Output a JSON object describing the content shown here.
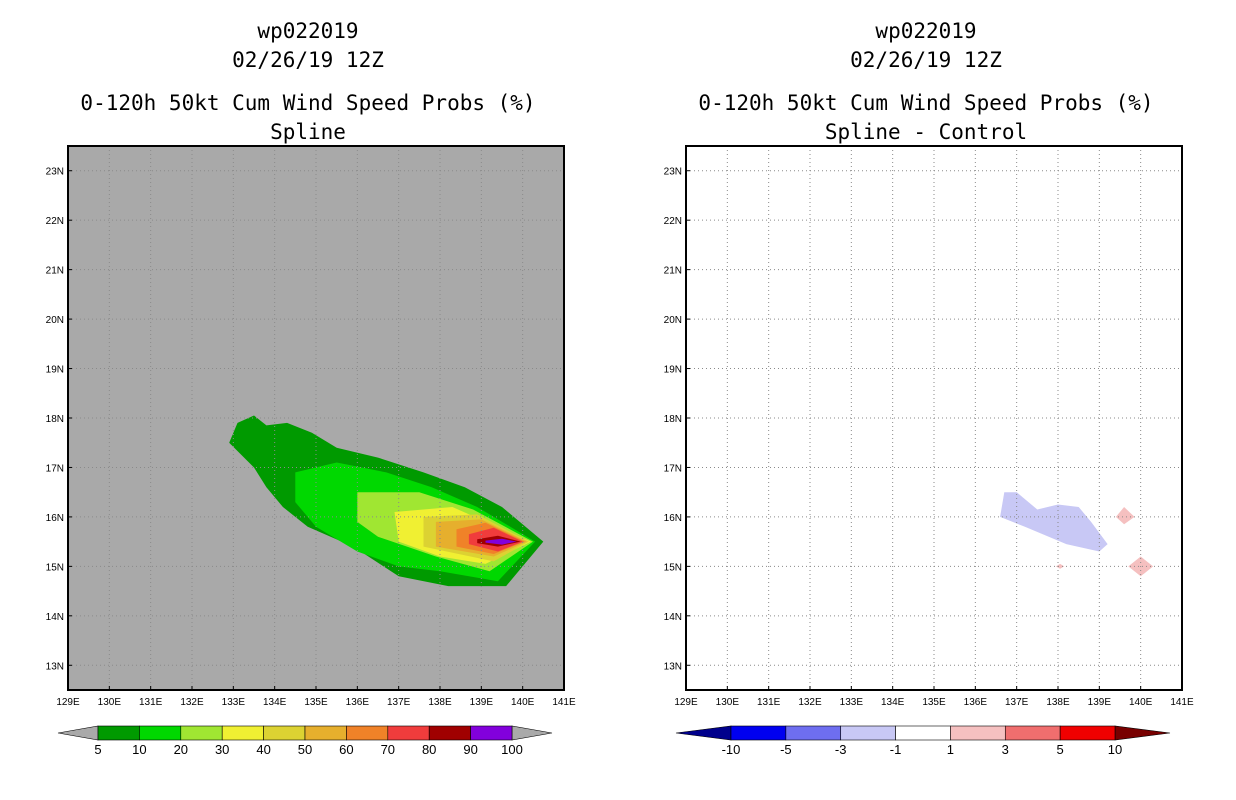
{
  "chart_data": [
    {
      "type": "contour-map",
      "storm_id": "wp022019",
      "date_label": "02/26/19 12Z",
      "title": "0-120h 50kt Cum Wind Speed Probs (%)",
      "subtitle": "Spline",
      "xlim": [
        129,
        141
      ],
      "ylim": [
        12.5,
        23.5
      ],
      "x_ticks": [
        129,
        130,
        131,
        132,
        133,
        134,
        135,
        136,
        137,
        138,
        139,
        140,
        141
      ],
      "x_tick_labels": [
        "129E",
        "130E",
        "131E",
        "132E",
        "133E",
        "134E",
        "135E",
        "136E",
        "137E",
        "138E",
        "139E",
        "140E",
        "141E"
      ],
      "y_ticks": [
        13,
        14,
        15,
        16,
        17,
        18,
        19,
        20,
        21,
        22,
        23
      ],
      "y_tick_labels": [
        "13N",
        "14N",
        "15N",
        "16N",
        "17N",
        "18N",
        "19N",
        "20N",
        "21N",
        "22N",
        "23N"
      ],
      "background_color": "#a9a9a9",
      "grid": true,
      "levels": [
        5,
        10,
        20,
        30,
        40,
        50,
        60,
        70,
        80,
        90,
        100
      ],
      "level_labels": [
        "5",
        "10",
        "20",
        "30",
        "40",
        "50",
        "60",
        "70",
        "80",
        "90",
        "100"
      ],
      "colors": [
        "#009a00",
        "#00d800",
        "#a0e632",
        "#f0f032",
        "#dcd232",
        "#e6af2d",
        "#f08228",
        "#f03c3c",
        "#a00000",
        "#8200dc"
      ],
      "contours": [
        {
          "min": 5,
          "polygon": [
            [
              132.9,
              17.5
            ],
            [
              133.1,
              17.9
            ],
            [
              133.5,
              18.05
            ],
            [
              133.8,
              17.85
            ],
            [
              134.3,
              17.9
            ],
            [
              134.9,
              17.7
            ],
            [
              135.5,
              17.4
            ],
            [
              136.5,
              17.2
            ],
            [
              137.6,
              16.9
            ],
            [
              138.6,
              16.6
            ],
            [
              139.5,
              16.2
            ],
            [
              140.5,
              15.5
            ],
            [
              139.6,
              14.6
            ],
            [
              138.2,
              14.6
            ],
            [
              137,
              14.8
            ],
            [
              135.9,
              15.4
            ],
            [
              134.8,
              15.8
            ],
            [
              134.2,
              16.2
            ],
            [
              133.8,
              16.6
            ],
            [
              133.5,
              17.0
            ]
          ]
        },
        {
          "min": 10,
          "polygon": [
            [
              134.5,
              16.9
            ],
            [
              135.5,
              17.1
            ],
            [
              136.7,
              16.9
            ],
            [
              137.8,
              16.6
            ],
            [
              138.9,
              16.2
            ],
            [
              140.3,
              15.5
            ],
            [
              139.4,
              14.7
            ],
            [
              138.0,
              14.9
            ],
            [
              137.0,
              15.0
            ],
            [
              136.0,
              15.3
            ],
            [
              135.0,
              15.8
            ],
            [
              134.5,
              16.3
            ]
          ]
        },
        {
          "min": 20,
          "polygon": [
            [
              136.0,
              16.5
            ],
            [
              137.5,
              16.5
            ],
            [
              138.8,
              16.15
            ],
            [
              140.25,
              15.5
            ],
            [
              139.2,
              14.9
            ],
            [
              137.9,
              15.2
            ],
            [
              136.5,
              15.6
            ],
            [
              136.0,
              15.9
            ]
          ]
        },
        {
          "min": 30,
          "polygon": [
            [
              136.9,
              16.1
            ],
            [
              138.3,
              16.2
            ],
            [
              140.2,
              15.5
            ],
            [
              139.1,
              15.05
            ],
            [
              138.0,
              15.2
            ],
            [
              137.0,
              15.5
            ]
          ]
        },
        {
          "min": 40,
          "polygon": [
            [
              137.6,
              16.0
            ],
            [
              138.9,
              16.05
            ],
            [
              140.15,
              15.5
            ],
            [
              139.3,
              15.1
            ],
            [
              137.6,
              15.4
            ]
          ]
        },
        {
          "min": 50,
          "polygon": [
            [
              137.9,
              15.9
            ],
            [
              139.0,
              15.95
            ],
            [
              140.1,
              15.5
            ],
            [
              139.3,
              15.2
            ],
            [
              137.9,
              15.4
            ]
          ]
        },
        {
          "min": 60,
          "polygon": [
            [
              138.4,
              15.75
            ],
            [
              139.1,
              15.88
            ],
            [
              140.05,
              15.5
            ],
            [
              139.3,
              15.25
            ],
            [
              138.4,
              15.4
            ]
          ]
        },
        {
          "min": 70,
          "polygon": [
            [
              138.7,
              15.65
            ],
            [
              139.3,
              15.78
            ],
            [
              140.0,
              15.5
            ],
            [
              139.4,
              15.3
            ],
            [
              138.7,
              15.45
            ]
          ]
        },
        {
          "min": 80,
          "polygon": [
            [
              138.9,
              15.55
            ],
            [
              139.4,
              15.62
            ],
            [
              139.95,
              15.5
            ],
            [
              139.4,
              15.4
            ],
            [
              138.9,
              15.47
            ]
          ]
        },
        {
          "min": 90,
          "polygon": [
            [
              139.1,
              15.52
            ],
            [
              139.5,
              15.56
            ],
            [
              139.85,
              15.5
            ],
            [
              139.5,
              15.44
            ],
            [
              139.1,
              15.48
            ]
          ]
        }
      ]
    },
    {
      "type": "contour-map",
      "storm_id": "wp022019",
      "date_label": "02/26/19 12Z",
      "title": "0-120h 50kt Cum Wind Speed Probs (%)",
      "subtitle": "Spline - Control",
      "xlim": [
        129,
        141
      ],
      "ylim": [
        12.5,
        23.5
      ],
      "x_ticks": [
        129,
        130,
        131,
        132,
        133,
        134,
        135,
        136,
        137,
        138,
        139,
        140,
        141
      ],
      "x_tick_labels": [
        "129E",
        "130E",
        "131E",
        "132E",
        "133E",
        "134E",
        "135E",
        "136E",
        "137E",
        "138E",
        "139E",
        "140E",
        "141E"
      ],
      "y_ticks": [
        13,
        14,
        15,
        16,
        17,
        18,
        19,
        20,
        21,
        22,
        23
      ],
      "y_tick_labels": [
        "13N",
        "14N",
        "15N",
        "16N",
        "17N",
        "18N",
        "19N",
        "20N",
        "21N",
        "22N",
        "23N"
      ],
      "background_color": "#ffffff",
      "grid": true,
      "levels": [
        -10,
        -5,
        -3,
        -1,
        1,
        3,
        5,
        10
      ],
      "level_labels": [
        "-10",
        "-5",
        "-3",
        "-1",
        "1",
        "3",
        "5",
        "10"
      ],
      "colors": [
        "#00008c",
        "#0000f0",
        "#6e6ef0",
        "#c8c8f5",
        "#ffffff",
        "#f5c0c0",
        "#f06e6e",
        "#f00000",
        "#780000"
      ],
      "contours": [
        {
          "range": [
            -3,
            -1
          ],
          "polygon": [
            [
              136.6,
              16.0
            ],
            [
              136.7,
              16.5
            ],
            [
              137.0,
              16.5
            ],
            [
              137.5,
              16.15
            ],
            [
              138.0,
              16.25
            ],
            [
              138.5,
              16.2
            ],
            [
              138.8,
              15.9
            ],
            [
              139.2,
              15.45
            ],
            [
              139.0,
              15.3
            ],
            [
              138.2,
              15.45
            ],
            [
              137.2,
              15.8
            ]
          ]
        },
        {
          "range": [
            1,
            3
          ],
          "polygon": [
            [
              139.4,
              16.0
            ],
            [
              139.6,
              16.2
            ],
            [
              139.85,
              16.0
            ],
            [
              139.6,
              15.85
            ]
          ]
        },
        {
          "range": [
            1,
            3
          ],
          "polygon": [
            [
              139.7,
              15.0
            ],
            [
              140.0,
              15.2
            ],
            [
              140.3,
              15.0
            ],
            [
              140.0,
              14.8
            ]
          ]
        },
        {
          "range": [
            1,
            3
          ],
          "polygon": [
            [
              137.95,
              15.0
            ],
            [
              138.05,
              15.05
            ],
            [
              138.15,
              15.0
            ],
            [
              138.05,
              14.95
            ]
          ]
        }
      ]
    }
  ]
}
